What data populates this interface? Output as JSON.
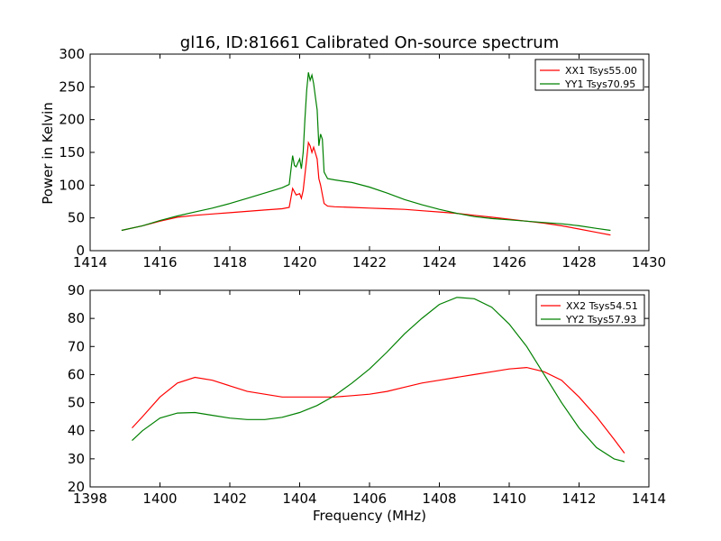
{
  "chart_data": [
    {
      "type": "line",
      "title": "gl16, ID:81661 Calibrated On-source spectrum",
      "xlabel": "",
      "ylabel": "Power in Kelvin",
      "xlim": [
        1414,
        1430
      ],
      "ylim": [
        0,
        300
      ],
      "xticks": [
        1414,
        1416,
        1418,
        1420,
        1422,
        1424,
        1426,
        1428,
        1430
      ],
      "yticks": [
        0,
        50,
        100,
        150,
        200,
        250,
        300
      ],
      "grid": false,
      "legend": "top-right",
      "series": [
        {
          "name": "XX1 Tsys55.00",
          "color": "#ff0000",
          "x": [
            1414.9,
            1415.5,
            1416.0,
            1416.5,
            1417.0,
            1417.5,
            1418.0,
            1418.5,
            1419.0,
            1419.5,
            1419.7,
            1419.8,
            1419.9,
            1420.0,
            1420.05,
            1420.1,
            1420.2,
            1420.25,
            1420.3,
            1420.35,
            1420.4,
            1420.5,
            1420.55,
            1420.6,
            1420.7,
            1420.8,
            1421.0,
            1421.5,
            1422.0,
            1422.5,
            1423.0,
            1423.5,
            1424.0,
            1424.5,
            1425.0,
            1425.5,
            1426.0,
            1426.5,
            1427.0,
            1427.5,
            1428.0,
            1428.5,
            1428.9
          ],
          "y": [
            31,
            38,
            45,
            51,
            54,
            56,
            58,
            60,
            62,
            64,
            66,
            95,
            85,
            87,
            80,
            92,
            140,
            165,
            160,
            150,
            158,
            140,
            110,
            100,
            72,
            68,
            67,
            66,
            65,
            64,
            63,
            61,
            59,
            57,
            54,
            51,
            48,
            45,
            42,
            38,
            33,
            28,
            24
          ]
        },
        {
          "name": "YY1 Tsys70.95",
          "color": "#008000",
          "x": [
            1414.9,
            1415.5,
            1416.0,
            1416.5,
            1417.0,
            1417.5,
            1418.0,
            1418.5,
            1419.0,
            1419.5,
            1419.7,
            1419.8,
            1419.85,
            1419.9,
            1420.0,
            1420.05,
            1420.1,
            1420.15,
            1420.2,
            1420.25,
            1420.3,
            1420.35,
            1420.4,
            1420.45,
            1420.5,
            1420.55,
            1420.6,
            1420.65,
            1420.7,
            1420.8,
            1421.0,
            1421.5,
            1422.0,
            1422.5,
            1423.0,
            1423.5,
            1424.0,
            1424.5,
            1425.0,
            1425.5,
            1426.0,
            1426.5,
            1427.0,
            1427.5,
            1428.0,
            1428.5,
            1428.9
          ],
          "y": [
            31,
            38,
            46,
            53,
            59,
            65,
            72,
            80,
            88,
            96,
            101,
            145,
            130,
            128,
            140,
            125,
            150,
            200,
            245,
            272,
            260,
            268,
            255,
            235,
            215,
            160,
            178,
            170,
            120,
            110,
            108,
            104,
            97,
            88,
            78,
            70,
            63,
            57,
            52,
            49,
            47,
            45,
            43,
            41,
            38,
            34,
            31
          ]
        }
      ]
    },
    {
      "type": "line",
      "title": "",
      "xlabel": "Frequency (MHz)",
      "ylabel": "",
      "xlim": [
        1398,
        1414
      ],
      "ylim": [
        20,
        90
      ],
      "xticks": [
        1398,
        1400,
        1402,
        1404,
        1406,
        1408,
        1410,
        1412,
        1414
      ],
      "yticks": [
        20,
        30,
        40,
        50,
        60,
        70,
        80,
        90
      ],
      "grid": false,
      "legend": "top-right",
      "series": [
        {
          "name": "XX2 Tsys54.51",
          "color": "#ff0000",
          "x": [
            1399.2,
            1399.5,
            1400.0,
            1400.5,
            1401.0,
            1401.5,
            1402.0,
            1402.5,
            1403.0,
            1403.5,
            1404.0,
            1404.5,
            1405.0,
            1405.5,
            1406.0,
            1406.5,
            1407.0,
            1407.5,
            1408.0,
            1408.5,
            1409.0,
            1409.5,
            1410.0,
            1410.5,
            1411.0,
            1411.5,
            1412.0,
            1412.5,
            1413.0,
            1413.3
          ],
          "y": [
            41,
            45,
            52,
            57,
            59,
            58,
            56,
            54,
            53,
            52,
            52,
            52,
            52,
            52.5,
            53,
            54,
            55.5,
            57,
            58,
            59,
            60,
            61,
            62,
            62.5,
            61,
            58,
            52,
            45,
            37,
            32
          ]
        },
        {
          "name": "YY2 Tsys57.93",
          "color": "#008000",
          "x": [
            1399.2,
            1399.5,
            1400.0,
            1400.5,
            1401.0,
            1401.5,
            1402.0,
            1402.5,
            1403.0,
            1403.5,
            1404.0,
            1404.5,
            1405.0,
            1405.5,
            1406.0,
            1406.5,
            1407.0,
            1407.5,
            1408.0,
            1408.5,
            1409.0,
            1409.5,
            1410.0,
            1410.5,
            1411.0,
            1411.5,
            1412.0,
            1412.5,
            1413.0,
            1413.3
          ],
          "y": [
            36.5,
            40,
            44.5,
            46.3,
            46.5,
            45.5,
            44.5,
            44,
            44,
            44.8,
            46.5,
            49,
            52.5,
            57,
            62,
            68,
            74.5,
            80,
            85,
            87.5,
            87,
            84,
            78,
            70,
            60,
            50,
            41,
            34,
            30,
            29
          ]
        }
      ]
    }
  ]
}
